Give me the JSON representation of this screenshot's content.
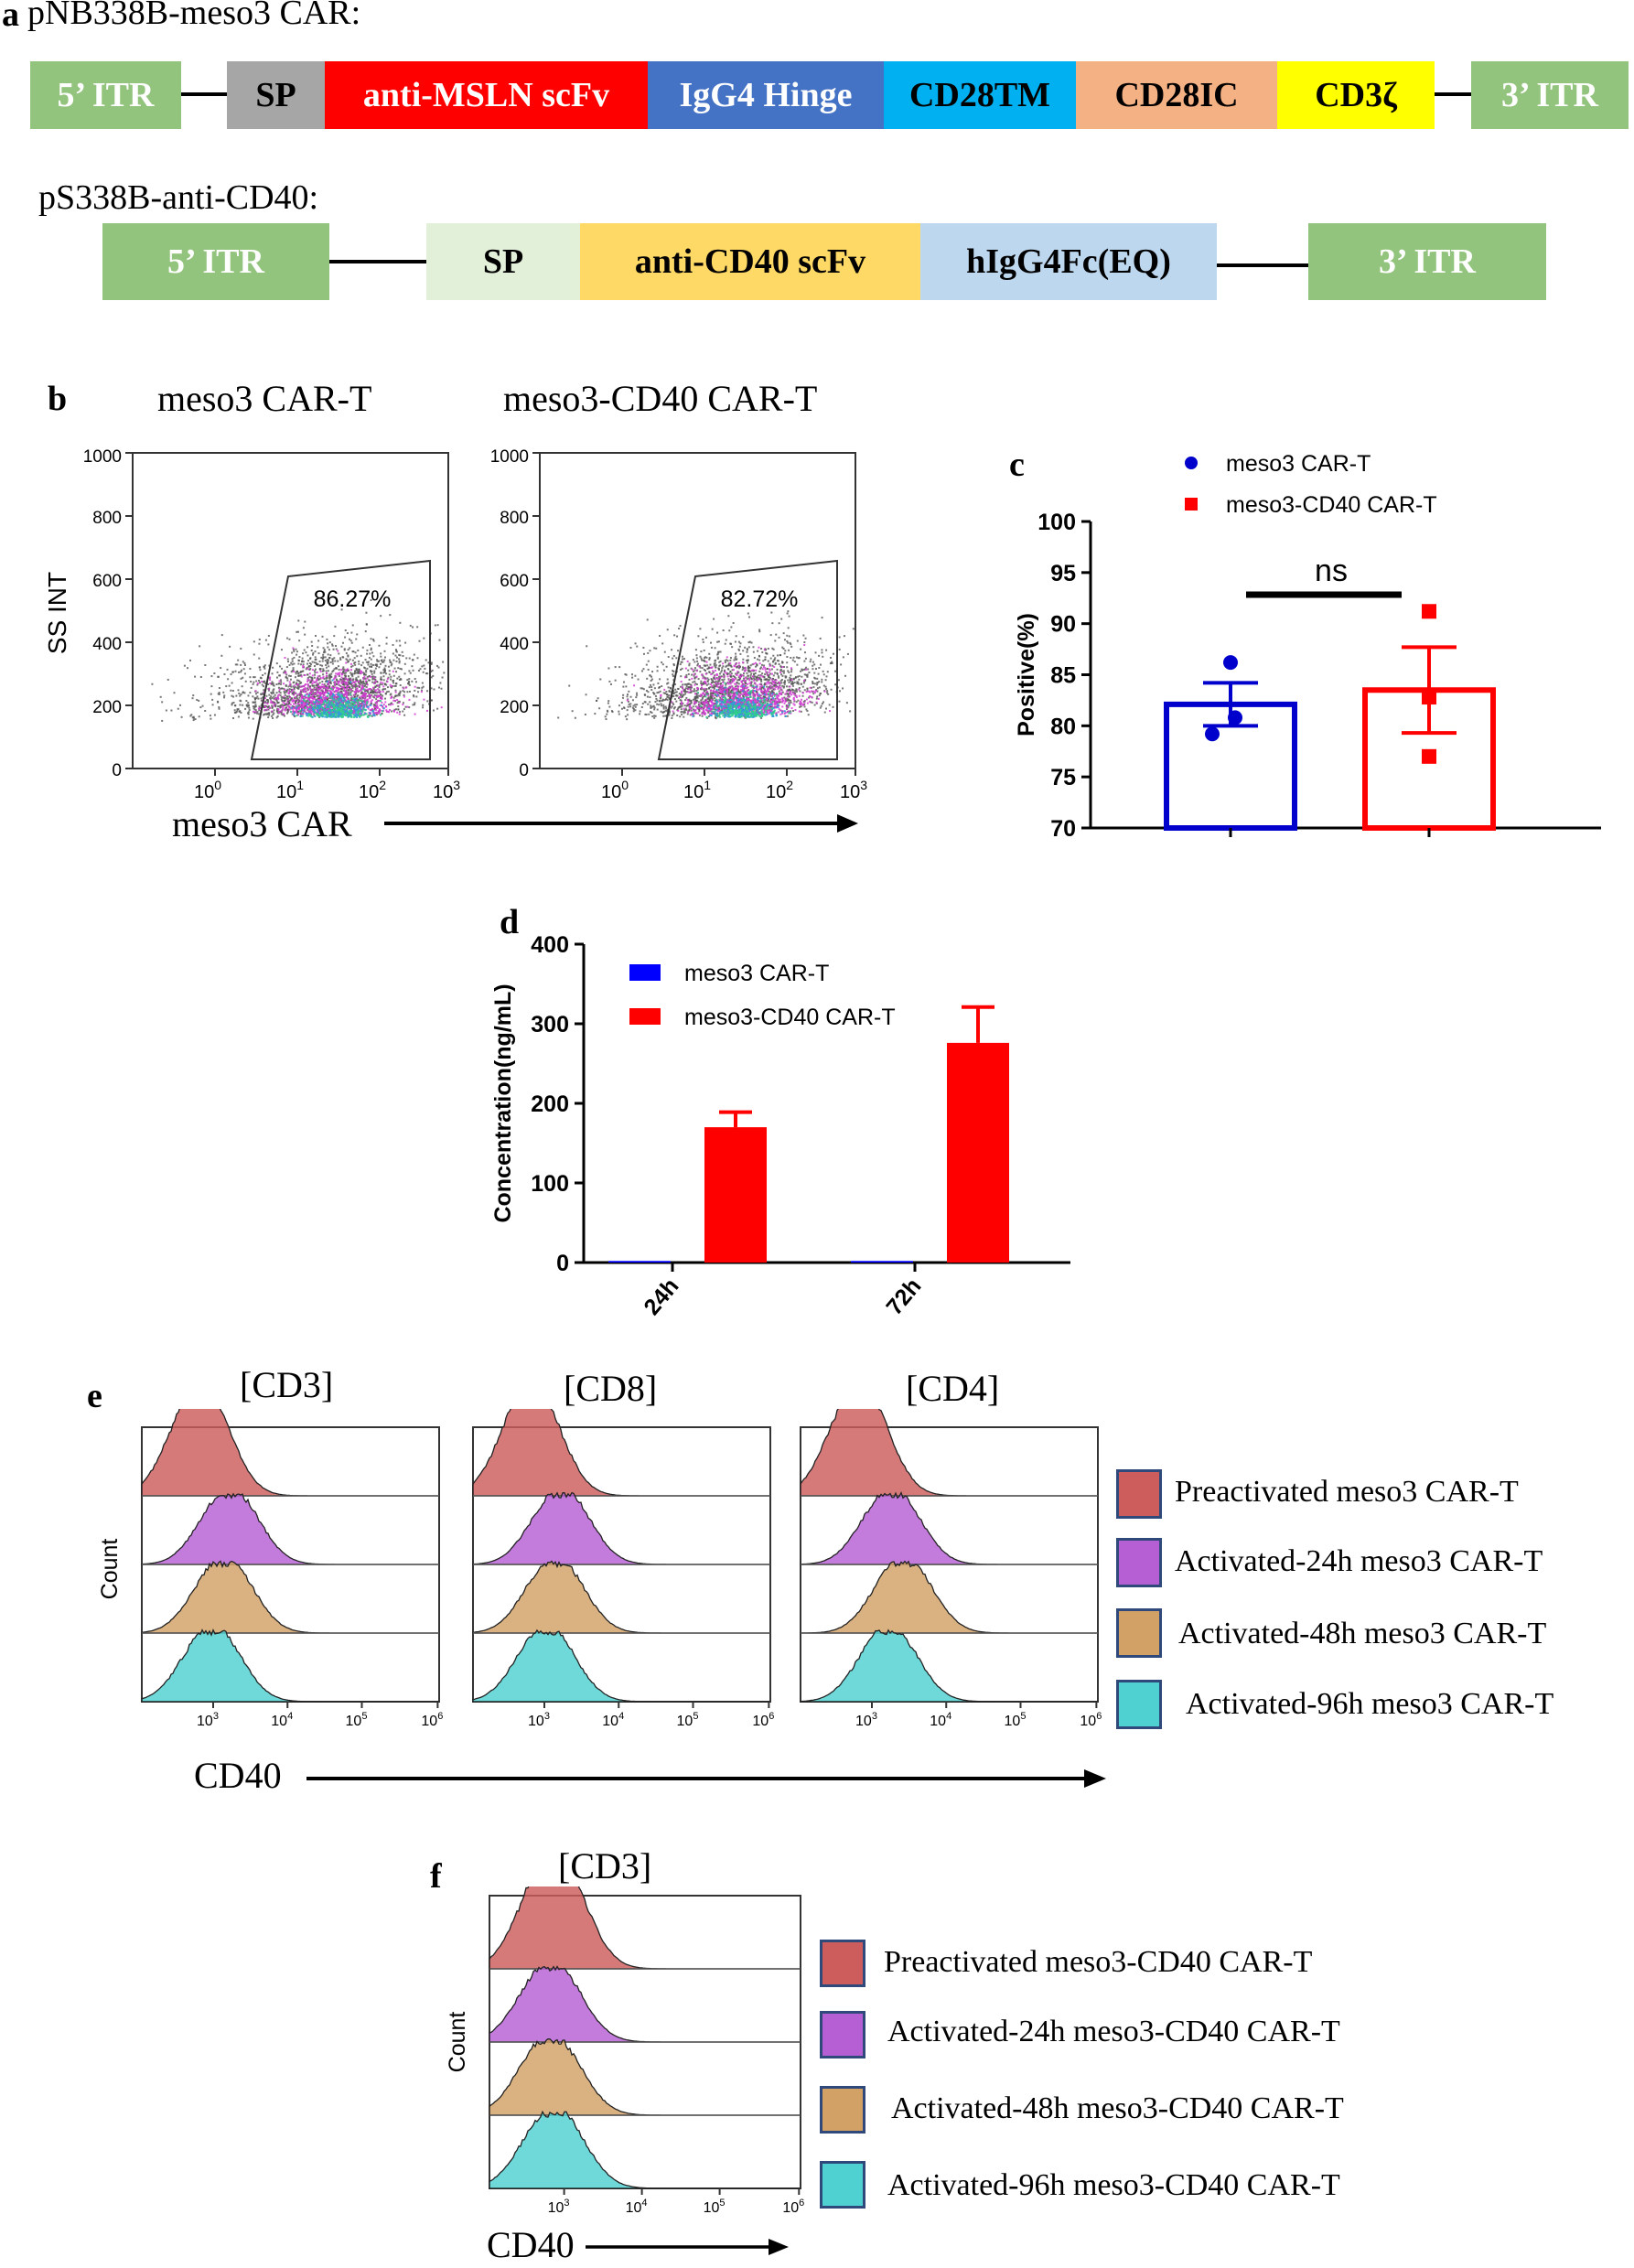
{
  "panels": {
    "a": "a",
    "b": "b",
    "c": "c",
    "d": "d",
    "e": "e",
    "f": "f"
  },
  "panel_a": {
    "construct1": {
      "name": "pNB338B-meso3 CAR:",
      "segments": [
        {
          "label": "5’ ITR",
          "color": "#93c47d",
          "text_color": "#ffffff"
        },
        {
          "label": "SP",
          "color": "#a6a6a6",
          "text_color": "#000000"
        },
        {
          "label": "anti-MSLN scFv",
          "color": "#ff0000",
          "text_color": "#ffffff"
        },
        {
          "label": "IgG4 Hinge",
          "color": "#4472c4",
          "text_color": "#ffffff"
        },
        {
          "label": "CD28TM",
          "color": "#00b0f0",
          "text_color": "#000000"
        },
        {
          "label": "CD28IC",
          "color": "#f4b183",
          "text_color": "#000000"
        },
        {
          "label": "CD3ζ",
          "color": "#ffff00",
          "text_color": "#000000"
        },
        {
          "label": "3’ ITR",
          "color": "#93c47d",
          "text_color": "#ffffff"
        }
      ]
    },
    "construct2": {
      "name": "pS338B-anti-CD40:",
      "segments": [
        {
          "label": "5’ ITR",
          "color": "#93c47d",
          "text_color": "#ffffff"
        },
        {
          "label": "SP",
          "color": "#e2f0d9",
          "text_color": "#000000"
        },
        {
          "label": "anti-CD40 scFv",
          "color": "#ffd966",
          "text_color": "#000000"
        },
        {
          "label": "hIgG4Fc(EQ)",
          "color": "#bdd7ee",
          "text_color": "#000000"
        },
        {
          "label": "3’ ITR",
          "color": "#93c47d",
          "text_color": "#ffffff"
        }
      ]
    }
  },
  "panel_b": {
    "plot_titles": [
      "meso3 CAR-T",
      "meso3-CD40 CAR-T"
    ],
    "gate_values": [
      "86.27%",
      "82.72%"
    ],
    "ylabel": "SS INT",
    "xlabel": "meso3 CAR",
    "yticks": [
      "1000",
      "800",
      "600",
      "400",
      "200",
      "0"
    ],
    "xticks": [
      "10",
      "10",
      "10",
      "10"
    ],
    "xtick_exps": [
      "0",
      "1",
      "2",
      "3"
    ]
  },
  "chart_data": [
    {
      "panel": "c",
      "type": "bar",
      "categories": [
        "meso3 CAR-T",
        "meso3-CD40 CAR-T"
      ],
      "values": [
        82.1,
        83.5
      ],
      "errors": [
        2.1,
        4.2
      ],
      "points": [
        [
          86.2,
          80.8,
          79.2
        ],
        [
          91.2,
          82.8,
          77.0
        ]
      ],
      "colors": [
        "#0000cc",
        "#ff0000"
      ],
      "ylabel": "Positive(%)",
      "ylim": [
        70,
        100
      ],
      "yticks": [
        70,
        75,
        80,
        85,
        90,
        95,
        100
      ],
      "legend": [
        "meso3 CAR-T",
        "meso3-CD40 CAR-T"
      ],
      "annotation": "ns"
    },
    {
      "panel": "d",
      "type": "bar",
      "categories": [
        "24h",
        "72h"
      ],
      "series": [
        {
          "name": "meso3 CAR-T",
          "values": [
            2,
            2
          ],
          "errors": [
            0,
            0
          ],
          "color": "#0000ff"
        },
        {
          "name": "meso3-CD40 CAR-T",
          "values": [
            170,
            276
          ],
          "errors": [
            19,
            45
          ],
          "color": "#ff0000"
        }
      ],
      "ylabel": "Concentration(ng/mL)",
      "ylim": [
        0,
        400
      ],
      "yticks": [
        0,
        100,
        200,
        300,
        400
      ]
    },
    {
      "panel": "e",
      "type": "area",
      "plot_titles": [
        "[CD3]",
        "[CD8]",
        "[CD4]"
      ],
      "ylabel": "Count",
      "xlabel": "CD40",
      "xticks": [
        "10",
        "10",
        "10",
        "10"
      ],
      "xtick_exps": [
        "3",
        "4",
        "5",
        "6"
      ],
      "legend": [
        {
          "label": "Preactivated meso3 CAR-T",
          "color": "#cd5c5c"
        },
        {
          "label": "Activated-24h meso3 CAR-T",
          "color": "#b65ed4"
        },
        {
          "label": "Activated-48h meso3 CAR-T",
          "color": "#d2a165"
        },
        {
          "label": "Activated-96h meso3 CAR-T",
          "color": "#4fd1d1"
        }
      ]
    },
    {
      "panel": "f",
      "type": "area",
      "plot_titles": [
        "[CD3]"
      ],
      "ylabel": "Count",
      "xlabel": "CD40",
      "xticks": [
        "10",
        "10",
        "10",
        "10"
      ],
      "xtick_exps": [
        "3",
        "4",
        "5",
        "6"
      ],
      "legend": [
        {
          "label": "Preactivated meso3-CD40 CAR-T",
          "color": "#cd5c5c"
        },
        {
          "label": "Activated-24h meso3-CD40 CAR-T",
          "color": "#b65ed4"
        },
        {
          "label": "Activated-48h meso3-CD40 CAR-T",
          "color": "#d2a165"
        },
        {
          "label": "Activated-96h meso3-CD40 CAR-T",
          "color": "#4fd1d1"
        }
      ]
    }
  ]
}
